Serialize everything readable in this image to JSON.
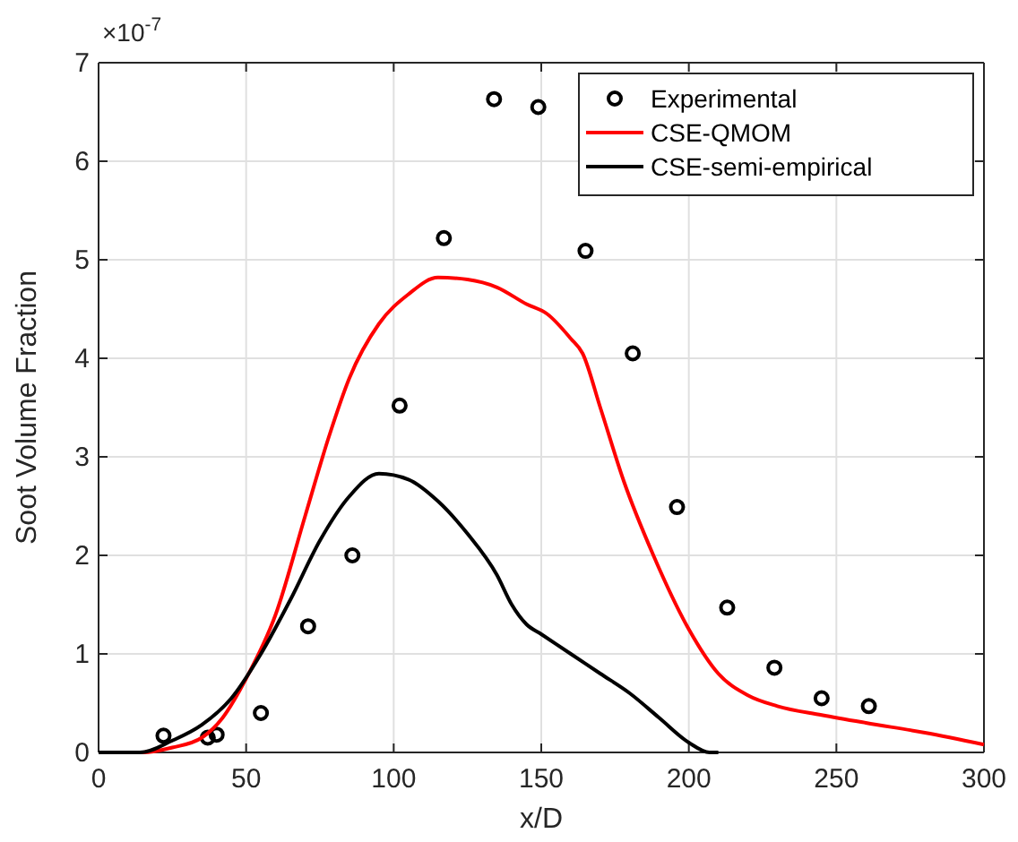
{
  "chart_data": {
    "type": "line",
    "xlabel": "x/D",
    "ylabel": "Soot Volume Fraction",
    "annotations": [
      "×10$^{-7}$"
    ],
    "xlim": [
      0,
      300
    ],
    "xticks": [
      0,
      50,
      100,
      150,
      200,
      250,
      300
    ],
    "ylim": [
      0,
      7
    ],
    "yticks": [
      0,
      1,
      2,
      3,
      4,
      5,
      6,
      7
    ],
    "grid": true,
    "legend": "top right",
    "series": [
      {
        "name": "Experimental",
        "type": "scatter",
        "marker": "circle",
        "color": "#000000",
        "x": [
          22,
          37,
          40,
          55,
          71,
          86,
          102,
          117,
          134,
          149,
          165,
          181,
          196,
          213,
          229,
          245,
          261
        ],
        "values": [
          0.17,
          0.15,
          0.18,
          0.4,
          1.28,
          2.0,
          3.52,
          5.22,
          6.63,
          6.55,
          5.09,
          4.05,
          2.49,
          1.47,
          0.86,
          0.55,
          0.47
        ]
      },
      {
        "name": "CSE-QMOM",
        "color": "#ff0000",
        "x": [
          0,
          15,
          25,
          35,
          42,
          50,
          60,
          70,
          78,
          85,
          95,
          105,
          115,
          125,
          135,
          145,
          152,
          160,
          164,
          170,
          178,
          188,
          200,
          210,
          220,
          230,
          245,
          260,
          280,
          300
        ],
        "values": [
          0,
          0,
          0.05,
          0.15,
          0.35,
          0.75,
          1.4,
          2.4,
          3.2,
          3.8,
          4.35,
          4.65,
          4.82,
          4.8,
          4.72,
          4.55,
          4.45,
          4.2,
          4.05,
          3.5,
          2.75,
          2.0,
          1.25,
          0.8,
          0.58,
          0.47,
          0.38,
          0.3,
          0.2,
          0.08
        ]
      },
      {
        "name": "CSE-semi-empirical",
        "color": "#000000",
        "x": [
          0,
          14,
          25,
          35,
          45,
          55,
          65,
          75,
          85,
          95,
          105,
          115,
          125,
          135,
          140,
          145,
          150,
          160,
          170,
          180,
          190,
          200,
          207,
          210
        ],
        "values": [
          0,
          0,
          0.12,
          0.28,
          0.55,
          1.0,
          1.55,
          2.15,
          2.6,
          2.83,
          2.77,
          2.55,
          2.22,
          1.8,
          1.5,
          1.3,
          1.2,
          1.0,
          0.8,
          0.6,
          0.35,
          0.1,
          0,
          0
        ]
      }
    ]
  }
}
